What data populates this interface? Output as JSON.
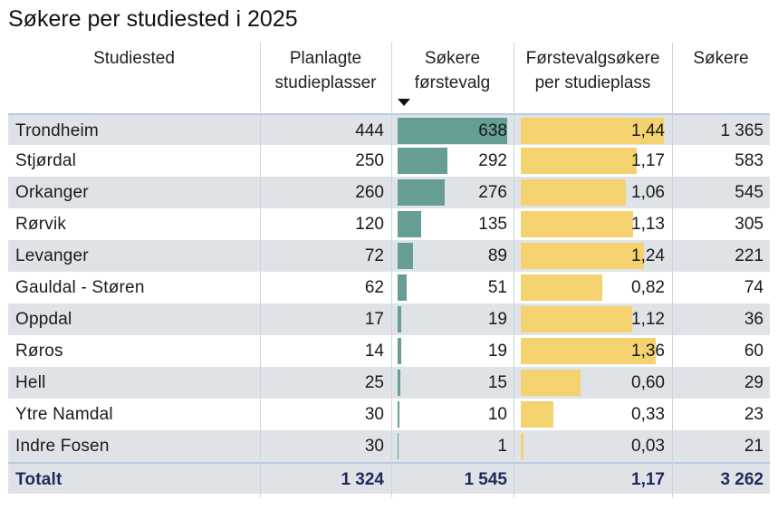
{
  "title": "Søkere per studiested i 2025",
  "headers": {
    "sted": [
      "Studiested"
    ],
    "plan": [
      "Planlagte",
      "studieplasser"
    ],
    "sok1": [
      "Søkere",
      "førstevalg"
    ],
    "per": [
      "Førstevalgsøkere",
      "per studieplass"
    ],
    "sok": [
      "Søkere"
    ]
  },
  "sort_indicator": "descending",
  "colors": {
    "teal_bar": "#669e94",
    "yellow_bar": "#f3d26f",
    "total_text": "#1f2a5c",
    "row_shade": "#dfe3e8"
  },
  "chart_data": {
    "type": "table",
    "title": "Søkere per studiested i 2025",
    "columns": [
      "Studiested",
      "Planlagte studieplasser",
      "Søkere førstevalg",
      "Førstevalgsøkere per studieplass",
      "Søkere"
    ],
    "rows": [
      {
        "sted": "Trondheim",
        "plan": "444",
        "sok1": "638",
        "per": "1,44",
        "sok": "1 365",
        "sok1_value": 638,
        "per_value": 1.44
      },
      {
        "sted": "Stjørdal",
        "plan": "250",
        "sok1": "292",
        "per": "1,17",
        "sok": "583",
        "sok1_value": 292,
        "per_value": 1.17
      },
      {
        "sted": "Orkanger",
        "plan": "260",
        "sok1": "276",
        "per": "1,06",
        "sok": "545",
        "sok1_value": 276,
        "per_value": 1.06
      },
      {
        "sted": "Rørvik",
        "plan": "120",
        "sok1": "135",
        "per": "1,13",
        "sok": "305",
        "sok1_value": 135,
        "per_value": 1.13
      },
      {
        "sted": "Levanger",
        "plan": "72",
        "sok1": "89",
        "per": "1,24",
        "sok": "221",
        "sok1_value": 89,
        "per_value": 1.24
      },
      {
        "sted": "Gauldal - Støren",
        "plan": "62",
        "sok1": "51",
        "per": "0,82",
        "sok": "74",
        "sok1_value": 51,
        "per_value": 0.82
      },
      {
        "sted": "Oppdal",
        "plan": "17",
        "sok1": "19",
        "per": "1,12",
        "sok": "36",
        "sok1_value": 19,
        "per_value": 1.12
      },
      {
        "sted": "Røros",
        "plan": "14",
        "sok1": "19",
        "per": "1,36",
        "sok": "60",
        "sok1_value": 19,
        "per_value": 1.36
      },
      {
        "sted": "Hell",
        "plan": "25",
        "sok1": "15",
        "per": "0,60",
        "sok": "29",
        "sok1_value": 15,
        "per_value": 0.6
      },
      {
        "sted": "Ytre Namdal",
        "plan": "30",
        "sok1": "10",
        "per": "0,33",
        "sok": "23",
        "sok1_value": 10,
        "per_value": 0.33
      },
      {
        "sted": "Indre Fosen",
        "plan": "30",
        "sok1": "1",
        "per": "0,03",
        "sok": "21",
        "sok1_value": 1,
        "per_value": 0.03
      }
    ],
    "total": {
      "sted": "Totalt",
      "plan": "1 324",
      "sok1": "1 545",
      "per": "1,17",
      "sok": "3 262"
    },
    "sok1_bar_max": 638,
    "per_bar_max": 1.44
  }
}
